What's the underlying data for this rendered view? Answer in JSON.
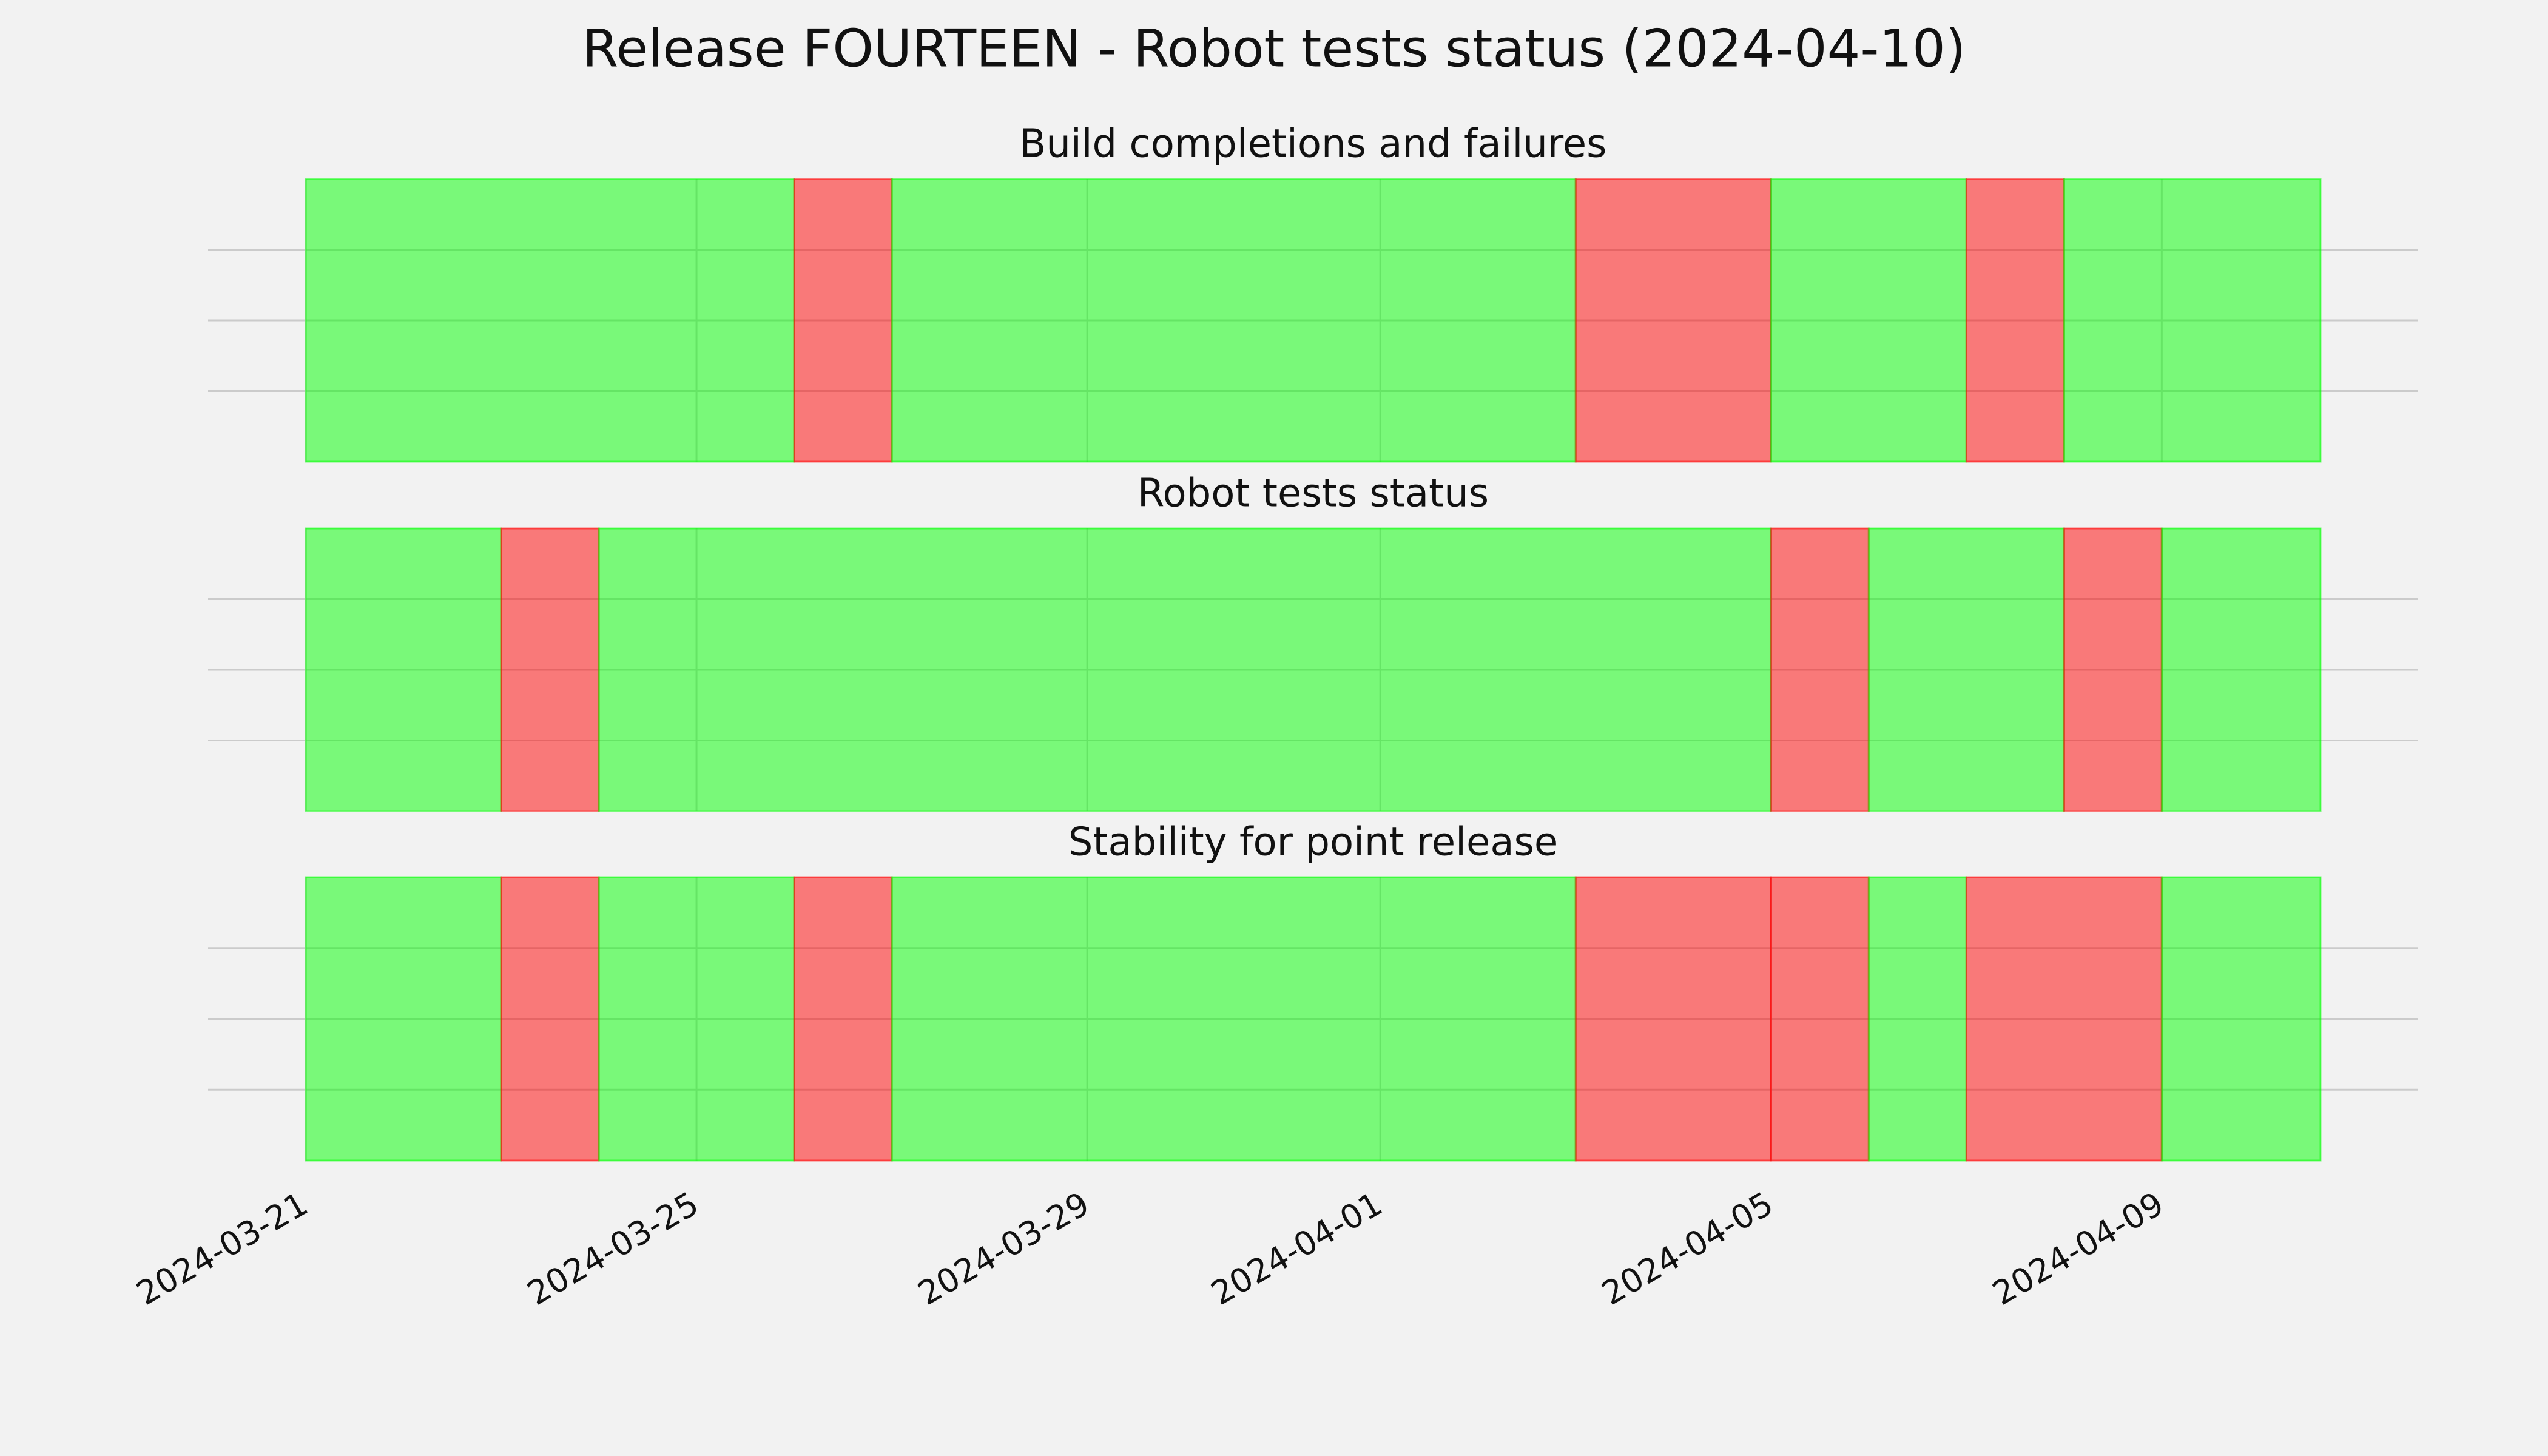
{
  "title": "Release FOURTEEN - Robot tests status (2024-04-10)",
  "chart_data": [
    {
      "type": "timeline",
      "title": "Build completions and failures",
      "xlim": [
        "2024-03-20T00:00",
        "2024-04-11T15:00"
      ],
      "xticks": [
        "2024-03-21",
        "2024-03-25",
        "2024-03-29",
        "2024-04-01",
        "2024-04-05",
        "2024-04-09"
      ],
      "ylim": [
        0,
        1
      ],
      "yticks": [
        0.25,
        0.5,
        0.75
      ],
      "grid": true,
      "alpha": 0.5,
      "segments": [
        {
          "start": "2024-03-21",
          "end": "2024-03-26",
          "color": "#00ff00"
        },
        {
          "start": "2024-03-26",
          "end": "2024-03-27",
          "color": "#ff0000"
        },
        {
          "start": "2024-03-27",
          "end": "2024-04-03",
          "color": "#00ff00"
        },
        {
          "start": "2024-04-03",
          "end": "2024-04-05",
          "color": "#ff0000"
        },
        {
          "start": "2024-04-05",
          "end": "2024-04-07",
          "color": "#00ff00"
        },
        {
          "start": "2024-04-07",
          "end": "2024-04-08",
          "color": "#ff0000"
        },
        {
          "start": "2024-04-08",
          "end": "2024-04-10T15:00",
          "color": "#00ff00"
        }
      ]
    },
    {
      "type": "timeline",
      "title": "Robot tests status",
      "xlim": [
        "2024-03-20T00:00",
        "2024-04-11T15:00"
      ],
      "xticks": [
        "2024-03-21",
        "2024-03-25",
        "2024-03-29",
        "2024-04-01",
        "2024-04-05",
        "2024-04-09"
      ],
      "ylim": [
        0,
        1
      ],
      "yticks": [
        0.25,
        0.5,
        0.75
      ],
      "grid": true,
      "alpha": 0.5,
      "segments": [
        {
          "start": "2024-03-21",
          "end": "2024-03-23",
          "color": "#00ff00"
        },
        {
          "start": "2024-03-23",
          "end": "2024-03-24",
          "color": "#ff0000"
        },
        {
          "start": "2024-03-24",
          "end": "2024-04-05",
          "color": "#00ff00"
        },
        {
          "start": "2024-04-05",
          "end": "2024-04-06",
          "color": "#ff0000"
        },
        {
          "start": "2024-04-06",
          "end": "2024-04-08",
          "color": "#00ff00"
        },
        {
          "start": "2024-04-08",
          "end": "2024-04-09",
          "color": "#ff0000"
        },
        {
          "start": "2024-04-09",
          "end": "2024-04-10T15:00",
          "color": "#00ff00"
        }
      ]
    },
    {
      "type": "timeline",
      "title": "Stability for point release",
      "xlim": [
        "2024-03-20T00:00",
        "2024-04-11T15:00"
      ],
      "xticks": [
        "2024-03-21",
        "2024-03-25",
        "2024-03-29",
        "2024-04-01",
        "2024-04-05",
        "2024-04-09"
      ],
      "ylim": [
        0,
        1
      ],
      "yticks": [
        0.25,
        0.5,
        0.75
      ],
      "grid": true,
      "alpha": 0.5,
      "segments": [
        {
          "start": "2024-03-21",
          "end": "2024-03-23",
          "color": "#00ff00"
        },
        {
          "start": "2024-03-23",
          "end": "2024-03-24",
          "color": "#ff0000"
        },
        {
          "start": "2024-03-24",
          "end": "2024-03-26",
          "color": "#00ff00"
        },
        {
          "start": "2024-03-26",
          "end": "2024-03-27",
          "color": "#ff0000"
        },
        {
          "start": "2024-03-27",
          "end": "2024-04-03",
          "color": "#00ff00"
        },
        {
          "start": "2024-04-03",
          "end": "2024-04-05",
          "color": "#ff0000"
        },
        {
          "start": "2024-04-05",
          "end": "2024-04-06",
          "color": "#ff0000"
        },
        {
          "start": "2024-04-06",
          "end": "2024-04-07",
          "color": "#00ff00"
        },
        {
          "start": "2024-04-07",
          "end": "2024-04-09",
          "color": "#ff0000"
        },
        {
          "start": "2024-04-09",
          "end": "2024-04-10T15:00",
          "color": "#00ff00"
        }
      ]
    }
  ]
}
